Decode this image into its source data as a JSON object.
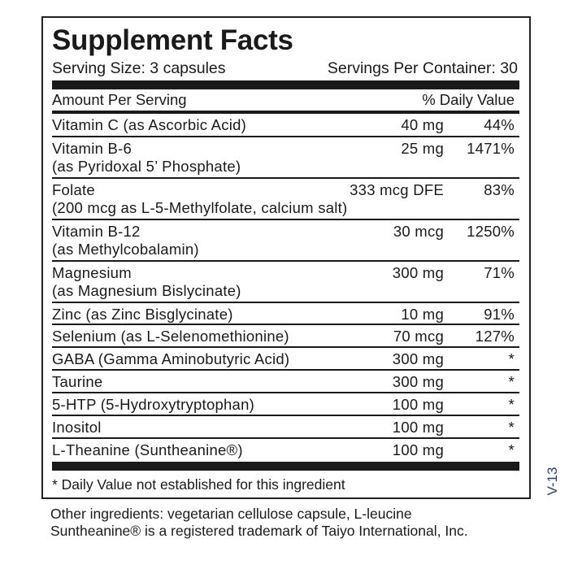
{
  "title": "Supplement Facts",
  "serving_size": "Serving Size: 3 capsules",
  "servings_per_container": "Servings Per Container: 30",
  "header": {
    "amount": "Amount Per Serving",
    "dv": "% Daily Value"
  },
  "rows": [
    {
      "name": "Vitamin C (as Ascorbic Acid)",
      "sub": "",
      "amount": "40 mg",
      "dv": "44%"
    },
    {
      "name": "Vitamin B-6",
      "sub": "(as Pyridoxal 5’ Phosphate)",
      "amount": "25 mg",
      "dv": "1471%"
    },
    {
      "name": "Folate",
      "sub": "(200 mcg as L-5-Methylfolate, calcium salt)",
      "amount": "333 mcg DFE",
      "dv": "83%"
    },
    {
      "name": "Vitamin B-12",
      "sub": "(as Methylcobalamin)",
      "amount": "30 mcg",
      "dv": "1250%"
    },
    {
      "name": "Magnesium",
      "sub": "(as Magnesium Bislycinate)",
      "amount": "300 mg",
      "dv": "71%"
    },
    {
      "name": "Zinc (as Zinc Bisglycinate)",
      "sub": "",
      "amount": "10 mg",
      "dv": "91%"
    },
    {
      "name": "Selenium (as L-Selenomethionine)",
      "sub": "",
      "amount": "70 mcg",
      "dv": "127%"
    },
    {
      "name": "GABA (Gamma Aminobutyric Acid)",
      "sub": "",
      "amount": "300 mg",
      "dv": "*"
    },
    {
      "name": "Taurine",
      "sub": "",
      "amount": "300 mg",
      "dv": "*"
    },
    {
      "name": "5-HTP (5-Hydroxytryptophan)",
      "sub": "",
      "amount": "100 mg",
      "dv": "*"
    },
    {
      "name": "Inositol",
      "sub": "",
      "amount": "100 mg",
      "dv": "*"
    },
    {
      "name": "L-Theanine (Suntheanine®)",
      "sub": "",
      "amount": "100 mg",
      "dv": "*"
    }
  ],
  "footnote": "* Daily Value not established for this ingredient",
  "other_ingredients": "Other ingredients: vegetarian cellulose capsule, L-leucine",
  "trademark": "Suntheanine® is a registered trademark of Taiyo International, Inc.",
  "code": "V-13",
  "colors": {
    "text": "#1a1a1a",
    "code": "#2c3f7a"
  }
}
